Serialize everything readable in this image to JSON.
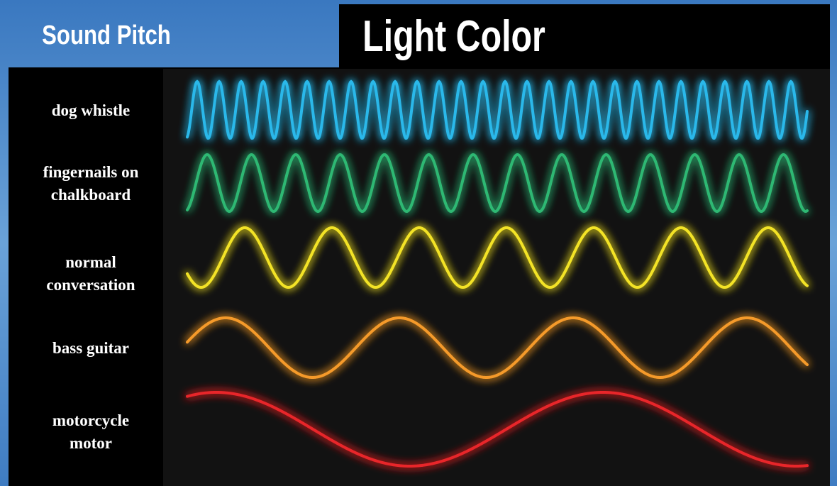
{
  "header": {
    "left_title": "Sound Pitch",
    "main_title": "Light Color"
  },
  "labels": [
    {
      "lines": [
        "dog whistle"
      ]
    },
    {
      "lines": [
        "fingernails on",
        "chalkboard"
      ]
    },
    {
      "lines": [
        "normal",
        "conversation"
      ]
    },
    {
      "lines": [
        "bass guitar"
      ]
    },
    {
      "lines": [
        "motorcycle",
        "motor"
      ]
    }
  ]
}
